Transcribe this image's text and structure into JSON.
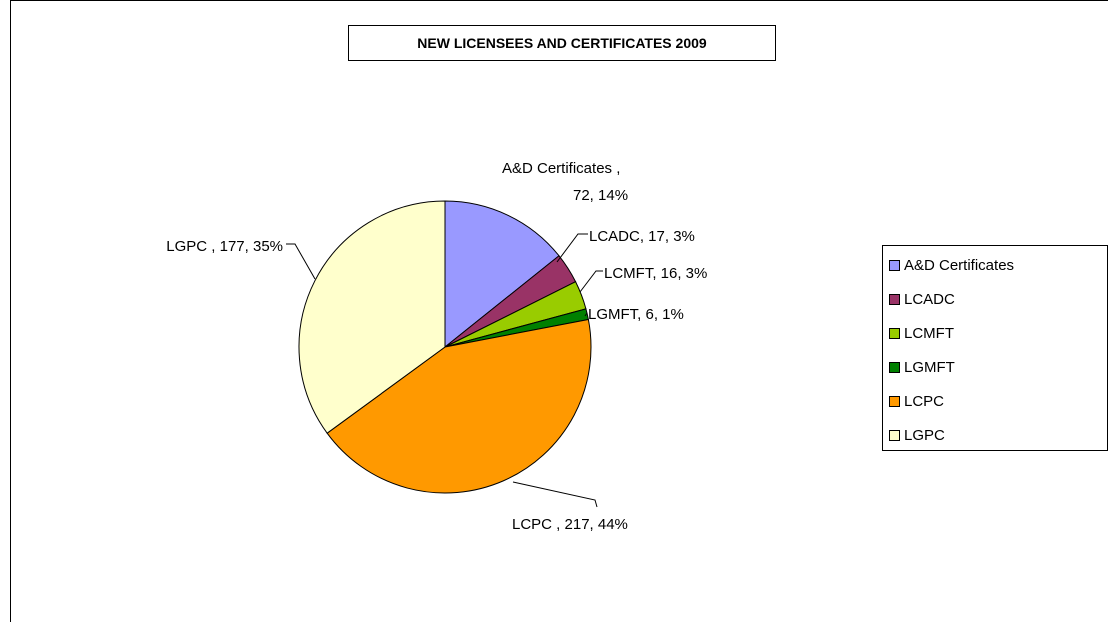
{
  "chart_data": {
    "type": "pie",
    "title": "NEW LICENSEES AND CERTIFICATES 2009",
    "legend_position": "right",
    "slices": [
      {
        "name": "A&D Certificates",
        "value": 72,
        "percent": "14%",
        "color": "#9999ff",
        "label_lines": [
          "A&D Certificates        ,",
          "72, 14%"
        ]
      },
      {
        "name": "LCADC",
        "value": 17,
        "percent": "3%",
        "color": "#993366",
        "label_lines": [
          "LCADC, 17, 3%"
        ]
      },
      {
        "name": "LCMFT",
        "value": 16,
        "percent": "3%",
        "color": "#99cc00",
        "label_lines": [
          "LCMFT, 16, 3%"
        ]
      },
      {
        "name": "LGMFT",
        "value": 6,
        "percent": "1%",
        "color": "#008000",
        "label_lines": [
          "LGMFT, 6, 1%"
        ]
      },
      {
        "name": "LCPC",
        "value": 217,
        "percent": "44%",
        "color": "#ff9900",
        "label_lines": [
          "LCPC  , 217, 44%"
        ]
      },
      {
        "name": "LGPC",
        "value": 177,
        "percent": "35%",
        "color": "#ffffcc",
        "label_lines": [
          "LGPC , 177, 35%"
        ]
      }
    ],
    "legend": [
      "A&D Certificates",
      "LCADC",
      "LCMFT",
      "LGMFT",
      "LCPC",
      "LGPC"
    ]
  }
}
